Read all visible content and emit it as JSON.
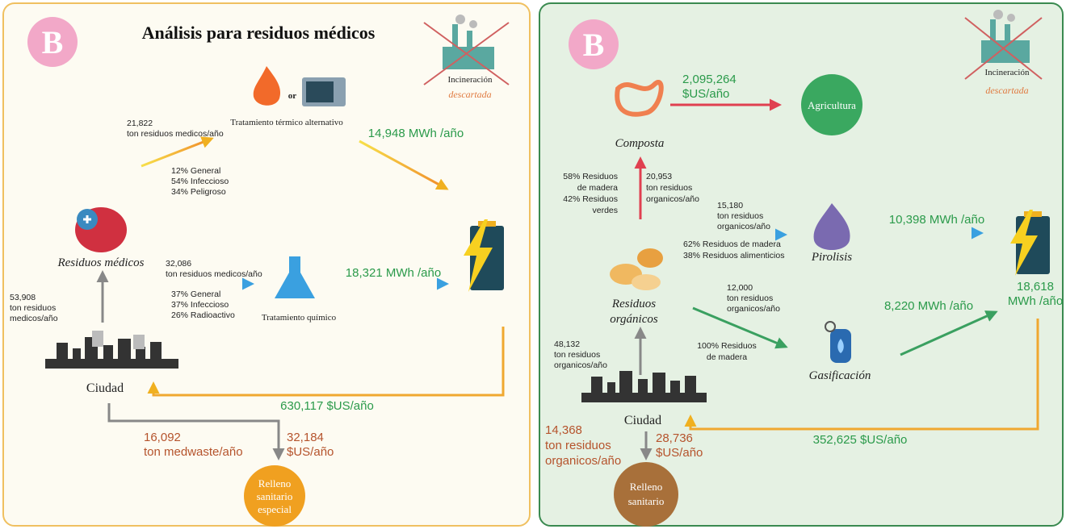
{
  "left": {
    "badge": "B",
    "title": "Análisis para residuos médicos",
    "incineration": {
      "label": "Incineración",
      "status": "descartada"
    },
    "thermal": {
      "or": "or",
      "label": "Tratamiento térmico alternativo",
      "input": [
        "21,822",
        "ton residuos medicos/año"
      ],
      "composition": [
        "12% General",
        "54% Infeccioso",
        "34% Peligroso"
      ],
      "energy": "14,948 MWh /año"
    },
    "medical_waste": {
      "label": "Residuos médicos",
      "input": [
        "53,908",
        "ton residuos",
        "medicos/año"
      ]
    },
    "chemical": {
      "input": [
        "32,086",
        "ton residuos medicos/año"
      ],
      "composition": [
        "37% General",
        "37% Infeccioso",
        "26% Radioactivo"
      ],
      "label": "Tratamiento químico",
      "energy": "18,321 MWh /año"
    },
    "city": "Ciudad",
    "revenue": "630,117  $US/año",
    "landfill": {
      "waste": [
        "16,092",
        "ton medwaste/año"
      ],
      "cost": [
        "32,184",
        "$US/año"
      ],
      "label": [
        "Relleno",
        "sanitario",
        "especial"
      ]
    }
  },
  "right": {
    "badge": "B",
    "incineration": {
      "label": "Incineración",
      "status": "descartada"
    },
    "compost": {
      "label": "Composta",
      "revenue": [
        "2,095,264",
        "$US/año"
      ],
      "destination": "Agricultura",
      "composition": [
        "58% Residuos",
        "de madera",
        "42% Residuos",
        "verdes"
      ],
      "input": [
        "20,953",
        "ton residuos",
        "organicos/año"
      ]
    },
    "pyrolysis": {
      "input": [
        "15,180",
        "ton residuos",
        "organicos/año"
      ],
      "composition": [
        "62% Residuos de madera",
        "38% Residuos alimenticios"
      ],
      "label": "Pirolisis",
      "energy": "10,398 MWh /año"
    },
    "total_energy": [
      "18,618",
      "MWh /año"
    ],
    "organic_waste": {
      "label": [
        "Residuos",
        "orgánicos"
      ],
      "input": [
        "48,132",
        "ton residuos",
        "organicos/año"
      ]
    },
    "gasification": {
      "input": [
        "12,000",
        "ton residuos",
        "organicos/año"
      ],
      "composition": [
        "100% Residuos",
        "de madera"
      ],
      "label": "Gasificación",
      "energy": "8,220 MWh /año"
    },
    "city": "Ciudad",
    "revenue": "352,625 $US/año",
    "landfill": {
      "waste": [
        "14,368",
        "ton residuos",
        "organicos/año"
      ],
      "cost": [
        "28,736",
        "$US/año"
      ],
      "label": [
        "Relleno",
        "sanitario"
      ]
    }
  }
}
